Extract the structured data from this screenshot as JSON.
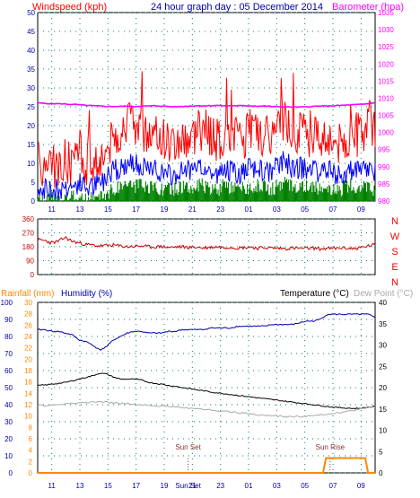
{
  "header": {
    "windspeed_title": "Windspeed (kph)",
    "graph_title": "24 hour graph day : 05 December 2014",
    "barometer_title": "Barometer (hpa)"
  },
  "colors": {
    "wind_gust": "#ff0000",
    "wind_avg": "#0000ff",
    "wind_min": "#008000",
    "barometer": "#ff00ff",
    "direction": "#cc0000",
    "compass_letters": "#ff0000",
    "humidity": "#0000aa",
    "temperature": "#000000",
    "dewpoint": "#aaaaaa",
    "rainfall": "#ff8800",
    "grid": "#008080",
    "axis_text": "#0000aa"
  },
  "chart_data": [
    {
      "id": "wind",
      "type": "line",
      "title": "24 hour graph day : 05 December 2014",
      "ylabel": "Windspeed (kph)",
      "y2label": "Barometer (hpa)",
      "x_ticks": [
        "11",
        "13",
        "15",
        "17",
        "19",
        "21",
        "23",
        "01",
        "03",
        "05",
        "07",
        "09"
      ],
      "x_hours_from_start": [
        1,
        3,
        5,
        7,
        9,
        11,
        13,
        15,
        17,
        19,
        21,
        23
      ],
      "ylim": [
        0,
        50
      ],
      "y_ticks": [
        0,
        5,
        10,
        15,
        20,
        25,
        30,
        35,
        40,
        45,
        50
      ],
      "y2lim": [
        980,
        1035
      ],
      "y2_ticks": [
        980,
        985,
        990,
        995,
        1000,
        1005,
        1010,
        1015,
        1020,
        1025,
        1030,
        1035
      ],
      "grid": true,
      "series": [
        {
          "name": "Gust",
          "axis": "left",
          "values": [
            11,
            9,
            10,
            8,
            11,
            9,
            12,
            10,
            11,
            12,
            14,
            17,
            19,
            20,
            21,
            19,
            18,
            17,
            18,
            16,
            16,
            17,
            17,
            18,
            19,
            18,
            16,
            17,
            18,
            16,
            17,
            19,
            18,
            17,
            18,
            20,
            22,
            18,
            19,
            17,
            18,
            17,
            18,
            16,
            15,
            17,
            18,
            17,
            21,
            19
          ]
        },
        {
          "name": "Average",
          "axis": "left",
          "values": [
            4,
            3,
            3,
            3,
            4,
            4,
            5,
            4,
            4,
            5,
            6,
            8,
            9,
            10,
            10,
            9,
            8,
            8,
            8,
            7,
            7,
            8,
            8,
            8,
            9,
            8,
            7,
            8,
            8,
            7,
            8,
            9,
            8,
            8,
            8,
            10,
            11,
            8,
            9,
            8,
            8,
            8,
            9,
            7,
            7,
            8,
            8,
            8,
            9,
            7
          ]
        },
        {
          "name": "Minimum",
          "axis": "left",
          "values": [
            1,
            0,
            1,
            0,
            1,
            1,
            1,
            0,
            1,
            1,
            2,
            3,
            4,
            5,
            4,
            4,
            3,
            4,
            3,
            3,
            3,
            4,
            3,
            4,
            4,
            3,
            3,
            4,
            3,
            3,
            3,
            4,
            4,
            4,
            3,
            4,
            5,
            4,
            4,
            4,
            3,
            4,
            4,
            3,
            3,
            4,
            4,
            4,
            4,
            3
          ]
        },
        {
          "name": "Barometer",
          "axis": "right",
          "values": [
            1008.6,
            1008.5,
            1008.4,
            1008.4,
            1008.3,
            1008.2,
            1008.1,
            1007.9,
            1007.8,
            1007.7,
            1007.6,
            1007.6,
            1007.6,
            1007.7,
            1007.6,
            1007.7,
            1007.7,
            1007.8,
            1007.7,
            1007.6,
            1007.5,
            1007.6,
            1007.7,
            1007.8,
            1007.8,
            1007.8,
            1007.9,
            1007.8,
            1007.8,
            1007.8,
            1007.8,
            1007.8,
            1007.7,
            1007.7,
            1007.6,
            1007.5,
            1007.5,
            1007.4,
            1007.4,
            1007.5,
            1007.6,
            1007.7,
            1007.7,
            1007.8,
            1007.9,
            1008.0,
            1008.1,
            1008.2,
            1008.4,
            1008.7
          ]
        }
      ]
    },
    {
      "id": "direction",
      "type": "line",
      "ylim": [
        0,
        360
      ],
      "y_ticks": [
        0,
        90,
        180,
        270,
        360
      ],
      "compass_labels": [
        "N",
        "W",
        "S",
        "E",
        "N"
      ],
      "grid": true,
      "series": [
        {
          "name": "Direction",
          "values": [
            225,
            220,
            205,
            215,
            240,
            215,
            205,
            195,
            190,
            185,
            188,
            190,
            185,
            180,
            183,
            185,
            180,
            178,
            182,
            175,
            178,
            180,
            175,
            178,
            172,
            176,
            180,
            175,
            178,
            172,
            175,
            178,
            170,
            175,
            172,
            170,
            168,
            172,
            170,
            168,
            172,
            165,
            170,
            168,
            172,
            170,
            168,
            175,
            185,
            195
          ]
        }
      ]
    },
    {
      "id": "climate",
      "type": "line",
      "x_ticks": [
        "11",
        "13",
        "15",
        "17",
        "19",
        "Sun Set",
        "21",
        "23",
        "01",
        "03",
        "05",
        "07",
        "09"
      ],
      "x_hours_from_start": [
        1,
        3,
        5,
        7,
        9,
        10.7,
        11,
        13,
        15,
        17,
        19,
        21,
        23
      ],
      "axis_titles": {
        "rainfall": "Rainfall (mm)",
        "humidity": "Humidity (%)",
        "temperature": "Temperature (°C)",
        "dewpoint": "Dew Point (°C)"
      },
      "humidity_lim": [
        0,
        100
      ],
      "humidity_ticks": [
        0,
        10,
        20,
        30,
        40,
        50,
        60,
        70,
        80,
        90,
        100
      ],
      "rain_lim": [
        0,
        30
      ],
      "rain_ticks": [
        0,
        2,
        4,
        6,
        8,
        10,
        12,
        14,
        16,
        18,
        20,
        22,
        24,
        26,
        28,
        30
      ],
      "temp_lim": [
        0,
        40
      ],
      "temp_ticks": [
        0,
        5,
        10,
        15,
        20,
        25,
        30,
        35,
        40
      ],
      "grid": true,
      "markers": [
        {
          "label": "Sun Set",
          "hour": 10.7
        },
        {
          "label": "Sun Rise",
          "hour": 20.8
        }
      ],
      "series": [
        {
          "name": "Humidity",
          "axis": "humidity",
          "values": [
            84,
            84,
            83,
            83,
            82,
            81,
            78,
            77,
            75,
            72,
            74,
            78,
            80,
            82,
            83,
            83,
            82,
            82,
            82,
            83,
            83,
            84,
            84,
            84,
            84,
            85,
            85,
            85,
            85,
            86,
            86,
            86,
            86,
            86,
            87,
            87,
            87,
            87,
            88,
            89,
            89,
            90,
            93,
            93,
            93,
            93,
            93,
            93,
            93,
            91
          ]
        },
        {
          "name": "Temperature",
          "axis": "temp",
          "values": [
            20.5,
            20.6,
            20.8,
            21.0,
            21.2,
            21.6,
            22.0,
            22.4,
            22.8,
            23.4,
            23.2,
            22.5,
            22.0,
            22.0,
            22.0,
            21.8,
            21.3,
            21.0,
            20.8,
            20.5,
            20.3,
            20.0,
            19.8,
            19.5,
            19.3,
            19.0,
            18.8,
            18.6,
            18.4,
            18.2,
            18.0,
            17.8,
            17.6,
            17.4,
            17.2,
            17.0,
            16.8,
            16.6,
            16.4,
            16.2,
            16.0,
            15.8,
            15.6,
            15.4,
            15.3,
            15.2,
            15.1,
            15.2,
            15.4,
            15.6
          ]
        },
        {
          "name": "Dew Point",
          "axis": "temp",
          "values": [
            15.8,
            15.8,
            15.9,
            16.0,
            16.2,
            16.3,
            16.4,
            16.5,
            16.6,
            16.7,
            16.6,
            16.4,
            16.3,
            16.2,
            16.1,
            16.0,
            15.9,
            15.8,
            15.7,
            15.6,
            15.5,
            15.3,
            15.2,
            15.1,
            14.9,
            14.8,
            14.6,
            14.5,
            14.3,
            14.2,
            14.0,
            13.8,
            13.6,
            13.5,
            13.4,
            13.3,
            13.2,
            13.2,
            13.2,
            13.3,
            13.4,
            13.6,
            13.8,
            14.0,
            14.2,
            14.4,
            14.7,
            15.0,
            15.3,
            15.6
          ]
        },
        {
          "name": "Rainfall",
          "axis": "rain",
          "points": [
            [
              0,
              0
            ],
            [
              20.3,
              0
            ],
            [
              20.5,
              2.6
            ],
            [
              23.3,
              2.6
            ],
            [
              23.5,
              0
            ],
            [
              24,
              0
            ]
          ]
        }
      ]
    }
  ]
}
